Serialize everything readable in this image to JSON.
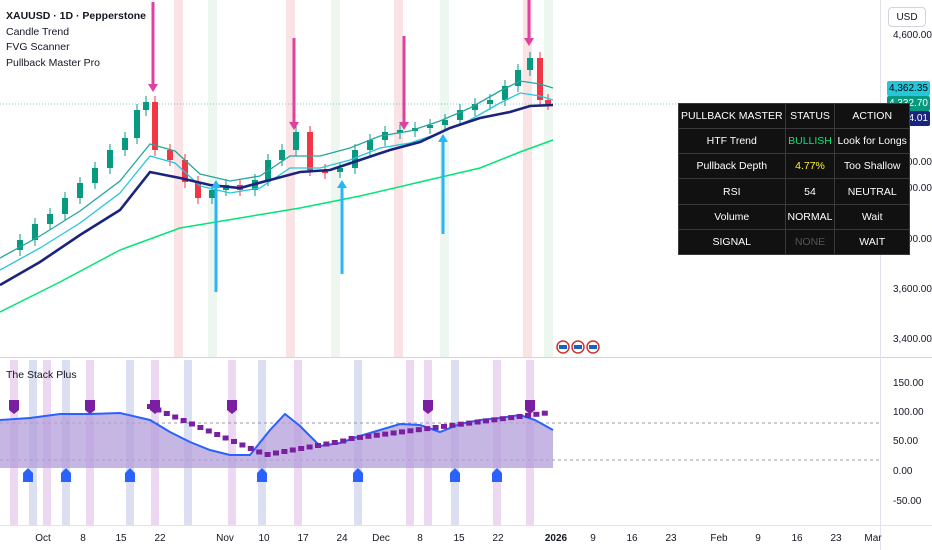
{
  "legend": {
    "symbol": "XAUUSD · 1D · Pepperstone",
    "indicators": [
      "Candle Trend",
      "FVG Scanner",
      "Pullback Master Pro"
    ]
  },
  "currency": "USD",
  "price_axis": {
    "ticks": [
      "4,600.00",
      "4,200.00",
      "4,000.00",
      "3,800.00",
      "3,600.00",
      "3,400.00"
    ],
    "tags": [
      {
        "label": "4,362.35",
        "bg": "#26c6da",
        "fg": "#000000"
      },
      {
        "label": "4,332.70",
        "bg": "#089981",
        "fg": "#ffffff"
      },
      {
        "label": "4,324.01",
        "bg": "#1a237e",
        "fg": "#ffffff"
      }
    ]
  },
  "indicator_pane": {
    "title": "The Stack Plus",
    "ticks": [
      "150.00",
      "100.00",
      "50.00",
      "0.00",
      "-50.00"
    ]
  },
  "time_axis": {
    "labels": [
      "Oct",
      "8",
      "15",
      "22",
      "Nov",
      "10",
      "17",
      "24",
      "Dec",
      "8",
      "15",
      "22",
      "2026",
      "9",
      "16",
      "23",
      "Feb",
      "9",
      "16",
      "23",
      "Mar"
    ]
  },
  "table": {
    "headers": [
      "PULLBACK MASTER",
      "STATUS",
      "ACTION"
    ],
    "rows": [
      {
        "metric": "HTF Trend",
        "status": "BULLISH",
        "action": "Look for Longs"
      },
      {
        "metric": "Pullback Depth",
        "status": "4.77%",
        "action": "Too Shallow"
      },
      {
        "metric": "RSI",
        "status": "54",
        "action": "NEUTRAL"
      },
      {
        "metric": "Volume",
        "status": "NORMAL",
        "action": "Wait"
      },
      {
        "metric": "SIGNAL",
        "status": "NONE",
        "action": "WAIT"
      }
    ],
    "status_colors": [
      "#00e676",
      "#ffeb3b",
      "#ffffff",
      "#ffffff",
      "#555555"
    ]
  },
  "colors": {
    "bull": "#089981",
    "bear": "#f23645",
    "ema_fast": "#26c6da",
    "ema_mid": "#1a237e",
    "ema_slow": "#00e676",
    "sell_arrow": "#e040a0",
    "buy_arrow": "#29b6f6"
  }
}
